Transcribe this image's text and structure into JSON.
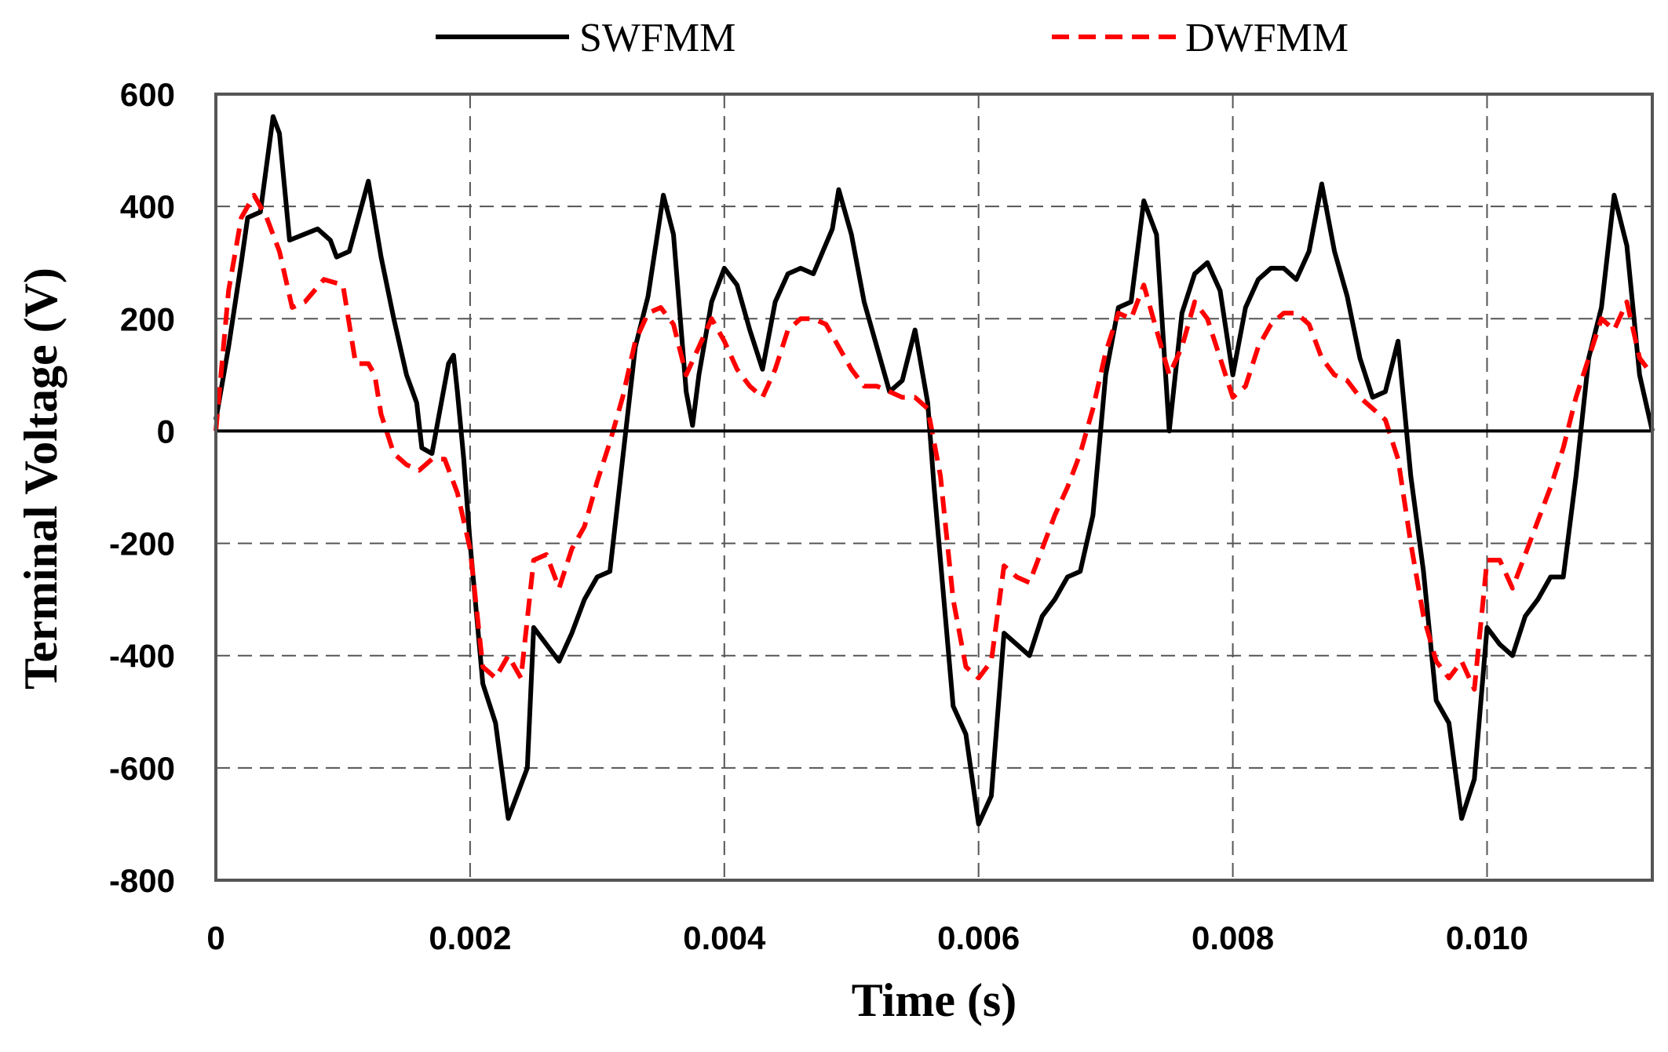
{
  "chart_data": {
    "type": "line",
    "xlabel": "Time (s)",
    "ylabel": "Terminal Voltage (V)",
    "xlim": [
      0,
      0.0113
    ],
    "ylim": [
      -800,
      600
    ],
    "grid": true,
    "legend_position": "top-center",
    "x_ticks": [
      {
        "value": 0,
        "label": "0"
      },
      {
        "value": 0.002,
        "label": "0.002"
      },
      {
        "value": 0.004,
        "label": "0.004"
      },
      {
        "value": 0.006,
        "label": "0.006"
      },
      {
        "value": 0.008,
        "label": "0.008"
      },
      {
        "value": 0.01,
        "label": "0.010"
      }
    ],
    "y_ticks": [
      {
        "value": 600,
        "label": "600"
      },
      {
        "value": 400,
        "label": "400"
      },
      {
        "value": 200,
        "label": "200"
      },
      {
        "value": 0,
        "label": "0"
      },
      {
        "value": -200,
        "label": "-200"
      },
      {
        "value": -400,
        "label": "-400"
      },
      {
        "value": -600,
        "label": "-600"
      },
      {
        "value": -800,
        "label": "-800"
      }
    ],
    "series": [
      {
        "name": "SWFMM",
        "color": "#000000",
        "style": "solid",
        "points": [
          [
            0,
            20
          ],
          [
            0.0001,
            150
          ],
          [
            0.0002,
            300
          ],
          [
            0.00025,
            380
          ],
          [
            0.00035,
            390
          ],
          [
            0.00045,
            560
          ],
          [
            0.0005,
            530
          ],
          [
            0.00058,
            340
          ],
          [
            0.0008,
            360
          ],
          [
            0.0009,
            340
          ],
          [
            0.00095,
            310
          ],
          [
            0.00105,
            320
          ],
          [
            0.0012,
            445
          ],
          [
            0.0013,
            310
          ],
          [
            0.0014,
            200
          ],
          [
            0.0015,
            100
          ],
          [
            0.00158,
            50
          ],
          [
            0.00162,
            -30
          ],
          [
            0.0017,
            -40
          ],
          [
            0.00183,
            120
          ],
          [
            0.00187,
            135
          ],
          [
            0.0019,
            70
          ],
          [
            0.00195,
            -50
          ],
          [
            0.002,
            -200
          ],
          [
            0.0021,
            -450
          ],
          [
            0.0022,
            -520
          ],
          [
            0.0023,
            -690
          ],
          [
            0.00245,
            -600
          ],
          [
            0.0025,
            -350
          ],
          [
            0.0027,
            -410
          ],
          [
            0.0028,
            -360
          ],
          [
            0.0029,
            -300
          ],
          [
            0.003,
            -260
          ],
          [
            0.0031,
            -250
          ],
          [
            0.0032,
            -50
          ],
          [
            0.0033,
            150
          ],
          [
            0.0034,
            240
          ],
          [
            0.00352,
            420
          ],
          [
            0.0036,
            350
          ],
          [
            0.0037,
            70
          ],
          [
            0.00375,
            10
          ],
          [
            0.0038,
            100
          ],
          [
            0.0039,
            230
          ],
          [
            0.004,
            290
          ],
          [
            0.0041,
            260
          ],
          [
            0.0042,
            180
          ],
          [
            0.0043,
            110
          ],
          [
            0.0044,
            230
          ],
          [
            0.0045,
            280
          ],
          [
            0.0046,
            290
          ],
          [
            0.0047,
            280
          ],
          [
            0.00485,
            360
          ],
          [
            0.0049,
            430
          ],
          [
            0.005,
            350
          ],
          [
            0.0051,
            230
          ],
          [
            0.0052,
            150
          ],
          [
            0.0053,
            70
          ],
          [
            0.0054,
            90
          ],
          [
            0.0055,
            180
          ],
          [
            0.0056,
            50
          ],
          [
            0.00565,
            -100
          ],
          [
            0.0057,
            -230
          ],
          [
            0.0058,
            -490
          ],
          [
            0.0059,
            -540
          ],
          [
            0.006,
            -700
          ],
          [
            0.0061,
            -650
          ],
          [
            0.0062,
            -360
          ],
          [
            0.0063,
            -380
          ],
          [
            0.0064,
            -400
          ],
          [
            0.0065,
            -330
          ],
          [
            0.0066,
            -300
          ],
          [
            0.0067,
            -260
          ],
          [
            0.0068,
            -250
          ],
          [
            0.0069,
            -150
          ],
          [
            0.007,
            100
          ],
          [
            0.0071,
            220
          ],
          [
            0.0072,
            230
          ],
          [
            0.0073,
            410
          ],
          [
            0.0074,
            350
          ],
          [
            0.0075,
            0
          ],
          [
            0.0076,
            210
          ],
          [
            0.0077,
            280
          ],
          [
            0.0078,
            300
          ],
          [
            0.0079,
            250
          ],
          [
            0.008,
            100
          ],
          [
            0.0081,
            220
          ],
          [
            0.0082,
            270
          ],
          [
            0.0083,
            290
          ],
          [
            0.0084,
            290
          ],
          [
            0.0085,
            270
          ],
          [
            0.0086,
            320
          ],
          [
            0.0087,
            440
          ],
          [
            0.0088,
            320
          ],
          [
            0.0089,
            240
          ],
          [
            0.009,
            130
          ],
          [
            0.0091,
            60
          ],
          [
            0.0092,
            70
          ],
          [
            0.0093,
            160
          ],
          [
            0.0094,
            -80
          ],
          [
            0.0095,
            -250
          ],
          [
            0.0096,
            -480
          ],
          [
            0.0097,
            -520
          ],
          [
            0.0098,
            -690
          ],
          [
            0.0099,
            -620
          ],
          [
            0.01,
            -350
          ],
          [
            0.0101,
            -380
          ],
          [
            0.0102,
            -400
          ],
          [
            0.0103,
            -330
          ],
          [
            0.0104,
            -300
          ],
          [
            0.0105,
            -260
          ],
          [
            0.0106,
            -260
          ],
          [
            0.0107,
            -80
          ],
          [
            0.0108,
            130
          ],
          [
            0.0109,
            220
          ],
          [
            0.011,
            420
          ],
          [
            0.0111,
            330
          ],
          [
            0.0112,
            100
          ],
          [
            0.0113,
            0
          ]
        ]
      },
      {
        "name": "DWFMM",
        "color": "#ff0000",
        "style": "dashed",
        "points": [
          [
            0,
            0
          ],
          [
            0.0001,
            250
          ],
          [
            0.0002,
            380
          ],
          [
            0.0003,
            420
          ],
          [
            0.0004,
            380
          ],
          [
            0.0005,
            320
          ],
          [
            0.0006,
            220
          ],
          [
            0.0007,
            230
          ],
          [
            0.00085,
            270
          ],
          [
            0.001,
            260
          ],
          [
            0.0011,
            120
          ],
          [
            0.0012,
            120
          ],
          [
            0.00125,
            100
          ],
          [
            0.0013,
            30
          ],
          [
            0.0014,
            -40
          ],
          [
            0.0015,
            -60
          ],
          [
            0.0016,
            -70
          ],
          [
            0.0017,
            -50
          ],
          [
            0.0018,
            -50
          ],
          [
            0.0019,
            -110
          ],
          [
            0.002,
            -210
          ],
          [
            0.0021,
            -420
          ],
          [
            0.0022,
            -440
          ],
          [
            0.0023,
            -400
          ],
          [
            0.0024,
            -440
          ],
          [
            0.0025,
            -230
          ],
          [
            0.0026,
            -220
          ],
          [
            0.0027,
            -280
          ],
          [
            0.0028,
            -210
          ],
          [
            0.0029,
            -170
          ],
          [
            0.003,
            -90
          ],
          [
            0.0031,
            -20
          ],
          [
            0.0032,
            60
          ],
          [
            0.0033,
            160
          ],
          [
            0.0034,
            210
          ],
          [
            0.0035,
            220
          ],
          [
            0.0036,
            190
          ],
          [
            0.0037,
            100
          ],
          [
            0.0038,
            150
          ],
          [
            0.0039,
            200
          ],
          [
            0.004,
            160
          ],
          [
            0.0041,
            110
          ],
          [
            0.0042,
            80
          ],
          [
            0.0043,
            60
          ],
          [
            0.0044,
            110
          ],
          [
            0.0045,
            180
          ],
          [
            0.0046,
            200
          ],
          [
            0.0047,
            200
          ],
          [
            0.0048,
            190
          ],
          [
            0.0049,
            150
          ],
          [
            0.005,
            110
          ],
          [
            0.0051,
            80
          ],
          [
            0.0052,
            80
          ],
          [
            0.0053,
            70
          ],
          [
            0.0054,
            60
          ],
          [
            0.0055,
            60
          ],
          [
            0.0056,
            40
          ],
          [
            0.0057,
            -80
          ],
          [
            0.0058,
            -300
          ],
          [
            0.0059,
            -420
          ],
          [
            0.006,
            -440
          ],
          [
            0.0061,
            -410
          ],
          [
            0.0062,
            -240
          ],
          [
            0.0063,
            -260
          ],
          [
            0.0064,
            -270
          ],
          [
            0.0065,
            -210
          ],
          [
            0.0066,
            -150
          ],
          [
            0.0067,
            -100
          ],
          [
            0.0068,
            -40
          ],
          [
            0.0069,
            40
          ],
          [
            0.007,
            140
          ],
          [
            0.0071,
            210
          ],
          [
            0.0072,
            200
          ],
          [
            0.0073,
            260
          ],
          [
            0.0074,
            180
          ],
          [
            0.0075,
            100
          ],
          [
            0.0076,
            150
          ],
          [
            0.0077,
            230
          ],
          [
            0.0078,
            200
          ],
          [
            0.0079,
            130
          ],
          [
            0.008,
            60
          ],
          [
            0.0081,
            80
          ],
          [
            0.0082,
            150
          ],
          [
            0.0083,
            190
          ],
          [
            0.0084,
            210
          ],
          [
            0.0085,
            210
          ],
          [
            0.0086,
            190
          ],
          [
            0.0087,
            130
          ],
          [
            0.0088,
            100
          ],
          [
            0.0089,
            90
          ],
          [
            0.009,
            60
          ],
          [
            0.0091,
            40
          ],
          [
            0.0092,
            20
          ],
          [
            0.0093,
            -50
          ],
          [
            0.0094,
            -200
          ],
          [
            0.0095,
            -330
          ],
          [
            0.0096,
            -410
          ],
          [
            0.0097,
            -440
          ],
          [
            0.0098,
            -410
          ],
          [
            0.0099,
            -460
          ],
          [
            0.01,
            -230
          ],
          [
            0.0101,
            -230
          ],
          [
            0.0102,
            -280
          ],
          [
            0.0103,
            -220
          ],
          [
            0.0104,
            -160
          ],
          [
            0.0105,
            -100
          ],
          [
            0.0106,
            -30
          ],
          [
            0.0107,
            60
          ],
          [
            0.0108,
            130
          ],
          [
            0.0109,
            200
          ],
          [
            0.011,
            180
          ],
          [
            0.0111,
            230
          ],
          [
            0.0112,
            130
          ],
          [
            0.0113,
            100
          ]
        ]
      }
    ]
  }
}
